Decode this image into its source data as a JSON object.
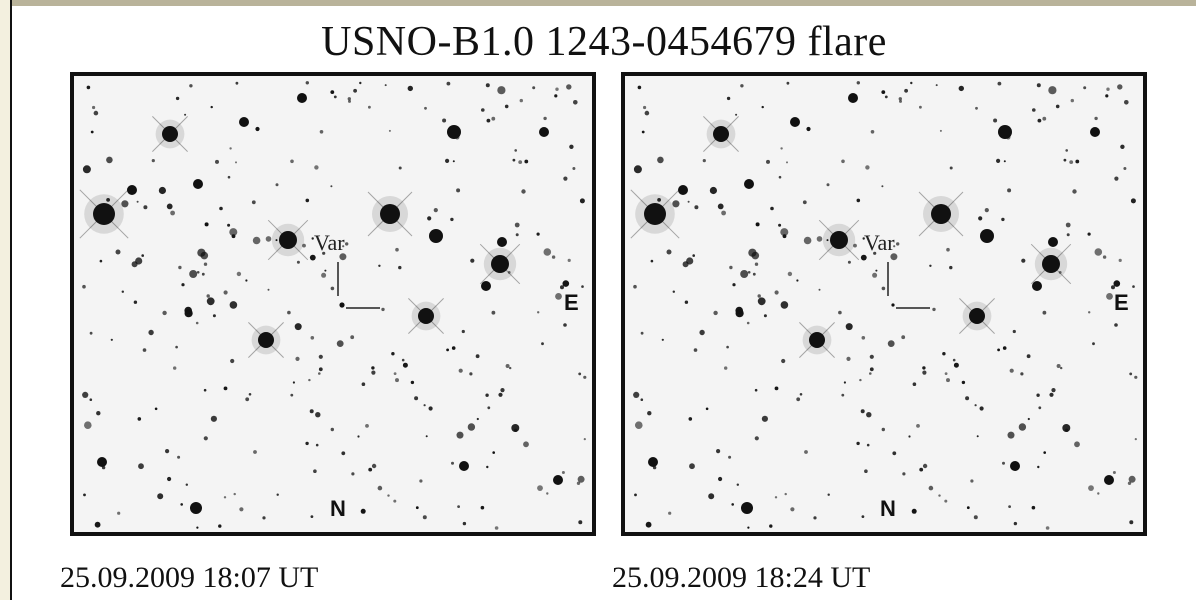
{
  "title": "USNO-B1.0 1243-0454679 flare",
  "panels": [
    {
      "timestamp": "25.09.2009 18:07 UT",
      "marker_label": "Var",
      "east_label": "E",
      "north_label": "N"
    },
    {
      "timestamp": "25.09.2009 18:24 UT",
      "marker_label": "Var",
      "east_label": "E",
      "north_label": "N"
    }
  ],
  "colors": {
    "sky_background": "#f4f4f4",
    "star": "#111111",
    "frame": "#111111"
  }
}
